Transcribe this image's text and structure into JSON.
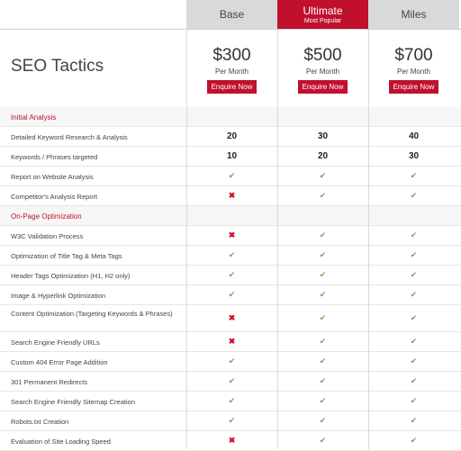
{
  "title": "SEO Tactics",
  "plans": [
    {
      "name": "Base",
      "price": "$300",
      "per": "Per Month",
      "cta": "Enquire Now"
    },
    {
      "name": "Ultimate",
      "badge": "Most Popular",
      "price": "$500",
      "per": "Per Month",
      "cta": "Enquire Now"
    },
    {
      "name": "Miles",
      "price": "$700",
      "per": "Per Month",
      "cta": "Enquire Now"
    }
  ],
  "colors": {
    "accent": "#c0102e",
    "check": "#6aa84f",
    "header_bg": "#d9d9d9"
  },
  "rows": [
    {
      "type": "section",
      "label": "Initial Analysis"
    },
    {
      "label": "Detailed Keyword Research & Analysis",
      "values": [
        "20",
        "30",
        "40"
      ]
    },
    {
      "label": "Keywords / Phrases targeted",
      "values": [
        "10",
        "20",
        "30"
      ]
    },
    {
      "label": "Report on Website Analysis",
      "values": [
        "check",
        "check",
        "check"
      ]
    },
    {
      "label": "Competitor's Analysis Report",
      "values": [
        "cross",
        "check",
        "check"
      ]
    },
    {
      "type": "section",
      "label": "On-Page Optimization"
    },
    {
      "label": "W3C Validation Process",
      "values": [
        "cross",
        "check",
        "check"
      ]
    },
    {
      "label": "Optimization of Title Tag & Meta Tags",
      "values": [
        "check",
        "check",
        "check"
      ]
    },
    {
      "label": "Header Tags Optimization (H1, H2 only)",
      "values": [
        "check",
        "check",
        "check"
      ]
    },
    {
      "label": "Image & Hyperlink Optimization",
      "values": [
        "check",
        "check",
        "check"
      ]
    },
    {
      "label": "Content Optimization (Targeting Keywords & Phrases)",
      "values": [
        "cross",
        "check",
        "check"
      ],
      "tall": true
    },
    {
      "label": "Search Engine Friendly URLs",
      "values": [
        "cross",
        "check",
        "check"
      ]
    },
    {
      "label": "Custom 404 Error Page Addition",
      "values": [
        "check",
        "check",
        "check"
      ]
    },
    {
      "label": "301 Permanent Redirects",
      "values": [
        "check",
        "check",
        "check"
      ]
    },
    {
      "label": "Search Engine Friendly Sitemap Creation",
      "values": [
        "check",
        "check",
        "check"
      ]
    },
    {
      "label": "Robots.txt Creation",
      "values": [
        "check",
        "check",
        "check"
      ]
    },
    {
      "label": "Evaluation of Site Loading Speed",
      "values": [
        "cross",
        "check",
        "check"
      ]
    }
  ]
}
